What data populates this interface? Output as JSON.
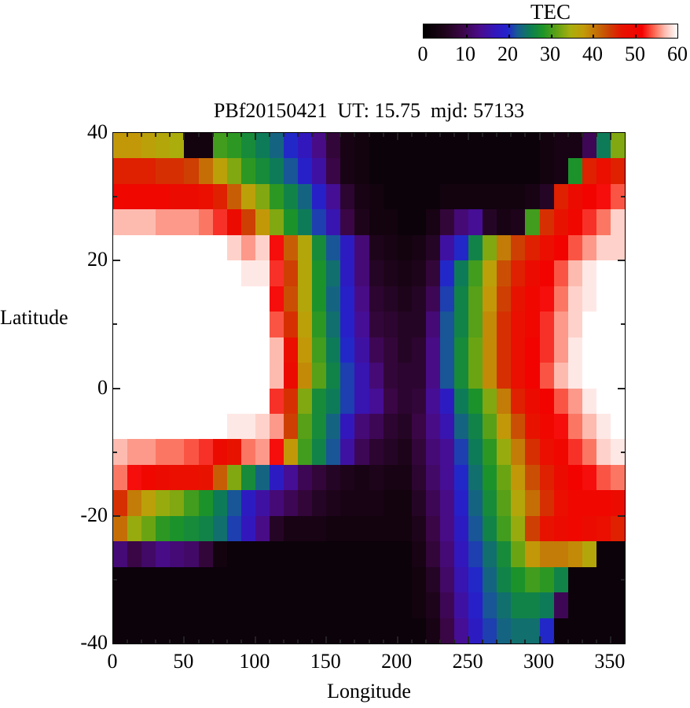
{
  "colorbar": {
    "title": "TEC",
    "tick_labels": [
      "0",
      "10",
      "20",
      "30",
      "40",
      "50",
      "60"
    ],
    "min": 0,
    "max": 60
  },
  "plot": {
    "title": "PBf20150421  UT: 15.75  mjd: 57133",
    "xlabel": "Longitude",
    "ylabel": "Latitude",
    "x_tick_labels": [
      "0",
      "50",
      "100",
      "150",
      "200",
      "250",
      "300",
      "350"
    ],
    "y_tick_labels": [
      "40",
      "20",
      "0",
      "-20",
      "-40"
    ]
  },
  "chart_data": {
    "type": "heatmap",
    "title": "PBf20150421  UT: 15.75  mjd: 57133",
    "xlabel": "Longitude",
    "ylabel": "Latitude",
    "colorbar_title": "TEC",
    "x_range": [
      0,
      360
    ],
    "y_range": [
      -40,
      40
    ],
    "x_major_ticks": [
      0,
      50,
      100,
      150,
      200,
      250,
      300,
      350
    ],
    "y_major_ticks": [
      40,
      20,
      0,
      -20,
      -40
    ],
    "x_minor_step": 10,
    "y_minor_step": 10,
    "color_range": [
      0,
      60
    ],
    "colorbar_ticks": [
      0,
      10,
      20,
      30,
      40,
      50,
      60
    ],
    "grid": {
      "lon_bin_deg": 10,
      "lat_bin_deg": 4,
      "rows_order": "latitude 40 (top) to -40 (bottom), each row longitude 0 to 360"
    },
    "palette_stops": [
      {
        "t": 0.0,
        "c": "#000000"
      },
      {
        "t": 0.08,
        "c": "#1d0418"
      },
      {
        "t": 0.15,
        "c": "#3a0645"
      },
      {
        "t": 0.22,
        "c": "#4a0c8a"
      },
      {
        "t": 0.28,
        "c": "#3316bb"
      },
      {
        "t": 0.33,
        "c": "#2323cd"
      },
      {
        "t": 0.37,
        "c": "#175b92"
      },
      {
        "t": 0.42,
        "c": "#0d7d54"
      },
      {
        "t": 0.47,
        "c": "#1d9428"
      },
      {
        "t": 0.53,
        "c": "#67a313"
      },
      {
        "t": 0.58,
        "c": "#a9ae0d"
      },
      {
        "t": 0.63,
        "c": "#c29b09"
      },
      {
        "t": 0.68,
        "c": "#c47106"
      },
      {
        "t": 0.73,
        "c": "#cc4203"
      },
      {
        "t": 0.78,
        "c": "#e61400"
      },
      {
        "t": 0.86,
        "c": "#f40000"
      },
      {
        "t": 0.91,
        "c": "#fb6a55"
      },
      {
        "t": 0.95,
        "c": "#fdbbb0"
      },
      {
        "t": 1.0,
        "c": "#ffffff"
      }
    ],
    "values": [
      [
        38,
        38,
        37,
        36,
        35,
        3,
        3,
        30,
        29,
        27,
        25,
        23,
        20,
        17,
        13,
        8,
        4,
        3,
        2,
        2,
        2,
        2,
        2,
        2,
        2,
        2,
        2,
        2,
        2,
        2,
        3,
        4,
        4,
        10,
        25,
        33
      ],
      [
        46,
        46,
        46,
        45,
        45,
        44,
        41,
        37,
        33,
        29,
        27,
        25,
        22,
        19,
        15,
        9,
        4,
        3,
        2,
        2,
        2,
        2,
        2,
        2,
        2,
        2,
        2,
        2,
        2,
        2,
        3,
        4,
        28,
        46,
        48,
        46
      ],
      [
        50,
        50,
        50,
        50,
        49,
        49,
        48,
        46,
        42,
        37,
        33,
        29,
        26,
        23,
        19,
        14,
        7,
        4,
        3,
        2,
        2,
        2,
        2,
        3,
        3,
        3,
        3,
        3,
        3,
        4,
        6,
        46,
        49,
        51,
        52,
        54
      ],
      [
        57,
        57,
        57,
        56,
        56,
        56,
        55,
        53,
        49,
        44,
        38,
        33,
        28,
        25,
        21,
        16,
        9,
        5,
        3,
        3,
        2,
        2,
        4,
        8,
        12,
        14,
        6,
        4,
        5,
        30,
        45,
        47,
        50,
        53,
        55,
        58
      ],
      [
        60,
        60,
        60,
        60,
        60,
        60,
        60,
        60,
        58,
        56,
        58,
        52,
        42,
        36,
        27,
        22,
        18,
        12,
        5,
        4,
        3,
        4,
        6,
        15,
        20,
        26,
        33,
        40,
        44,
        46,
        48,
        51,
        54,
        56,
        58,
        58
      ],
      [
        60,
        60,
        60,
        60,
        60,
        60,
        60,
        60,
        60,
        59,
        59,
        53,
        44,
        36,
        28,
        24,
        18,
        12,
        6,
        5,
        4,
        5,
        8,
        20,
        25,
        30,
        37,
        43,
        46,
        49,
        51,
        54,
        57,
        59,
        60,
        60
      ],
      [
        60,
        60,
        60,
        60,
        60,
        60,
        60,
        60,
        60,
        60,
        60,
        52,
        43,
        36,
        28,
        23,
        19,
        13,
        7,
        6,
        5,
        6,
        10,
        21,
        26,
        31,
        38,
        44,
        47,
        50,
        52,
        55,
        58,
        59,
        60,
        60
      ],
      [
        60,
        60,
        60,
        60,
        60,
        60,
        60,
        60,
        60,
        60,
        60,
        54,
        45,
        37,
        29,
        24,
        19,
        14,
        8,
        7,
        6,
        6,
        12,
        22,
        26,
        31,
        39,
        45,
        48,
        50,
        53,
        56,
        58,
        60,
        60,
        60
      ],
      [
        60,
        60,
        60,
        60,
        60,
        60,
        60,
        60,
        60,
        60,
        60,
        57,
        48,
        38,
        30,
        25,
        20,
        15,
        10,
        8,
        6,
        7,
        13,
        22,
        27,
        32,
        39,
        45,
        48,
        51,
        53,
        56,
        59,
        60,
        60,
        60
      ],
      [
        60,
        60,
        60,
        60,
        60,
        60,
        60,
        60,
        60,
        60,
        60,
        57,
        49,
        39,
        31,
        26,
        21,
        16,
        12,
        8,
        7,
        7,
        13,
        22,
        27,
        32,
        39,
        45,
        48,
        51,
        54,
        57,
        59,
        60,
        60,
        60
      ],
      [
        60,
        60,
        60,
        60,
        60,
        60,
        60,
        60,
        60,
        60,
        60,
        53,
        45,
        33,
        27,
        25,
        21,
        16,
        14,
        9,
        7,
        8,
        14,
        18,
        25,
        28,
        33,
        40,
        46,
        49,
        51,
        54,
        56,
        59,
        60,
        60
      ],
      [
        60,
        60,
        60,
        60,
        60,
        60,
        60,
        60,
        59,
        59,
        58,
        56,
        44,
        31,
        27,
        23,
        17,
        12,
        10,
        7,
        6,
        9,
        13,
        16,
        23,
        26,
        31,
        38,
        43,
        47,
        50,
        52,
        55,
        57,
        59,
        60
      ],
      [
        57,
        56,
        56,
        55,
        55,
        54,
        53,
        49,
        47,
        55,
        56,
        52,
        38,
        30,
        26,
        22,
        15,
        10,
        7,
        6,
        5,
        8,
        12,
        14,
        21,
        25,
        29,
        34,
        40,
        45,
        48,
        50,
        53,
        55,
        58,
        59
      ],
      [
        55,
        52,
        50,
        49,
        48,
        48,
        47,
        42,
        33,
        27,
        23,
        18,
        14,
        10,
        8,
        6,
        5,
        4,
        5,
        4,
        4,
        7,
        11,
        14,
        20,
        24,
        28,
        32,
        38,
        43,
        46,
        49,
        51,
        52,
        54,
        55
      ],
      [
        45,
        40,
        37,
        34,
        33,
        30,
        28,
        25,
        22,
        18,
        15,
        12,
        10,
        8,
        6,
        5,
        4,
        4,
        4,
        3,
        3,
        6,
        10,
        13,
        19,
        23,
        27,
        31,
        36,
        41,
        45,
        48,
        50,
        50,
        50,
        49
      ],
      [
        41,
        34,
        32,
        29,
        28,
        27,
        26,
        24,
        21,
        17,
        13,
        6,
        4,
        4,
        4,
        3,
        3,
        3,
        3,
        3,
        3,
        5,
        9,
        13,
        18,
        22,
        26,
        30,
        34,
        44,
        47,
        49,
        50,
        49,
        48,
        46
      ],
      [
        12,
        9,
        11,
        13,
        12,
        11,
        8,
        3,
        2,
        2,
        2,
        2,
        2,
        2,
        2,
        2,
        2,
        2,
        2,
        2,
        2,
        4,
        8,
        12,
        17,
        21,
        24,
        27,
        32,
        38,
        40,
        40,
        39,
        36,
        2,
        2
      ],
      [
        2,
        2,
        2,
        2,
        2,
        2,
        2,
        2,
        2,
        2,
        2,
        2,
        2,
        2,
        2,
        2,
        2,
        2,
        2,
        2,
        2,
        3,
        6,
        11,
        16,
        20,
        23,
        26,
        28,
        30,
        29,
        26,
        2,
        2,
        2,
        2
      ],
      [
        2,
        2,
        2,
        2,
        2,
        2,
        2,
        2,
        2,
        2,
        2,
        2,
        2,
        2,
        2,
        2,
        2,
        2,
        2,
        2,
        2,
        3,
        5,
        10,
        15,
        19,
        22,
        24,
        26,
        26,
        25,
        10,
        2,
        2,
        2,
        2
      ],
      [
        2,
        2,
        2,
        2,
        2,
        2,
        2,
        2,
        2,
        2,
        2,
        2,
        2,
        2,
        2,
        2,
        2,
        2,
        2,
        2,
        2,
        2,
        4,
        9,
        14,
        18,
        21,
        23,
        24,
        24,
        20,
        2,
        2,
        2,
        2,
        2
      ]
    ]
  }
}
